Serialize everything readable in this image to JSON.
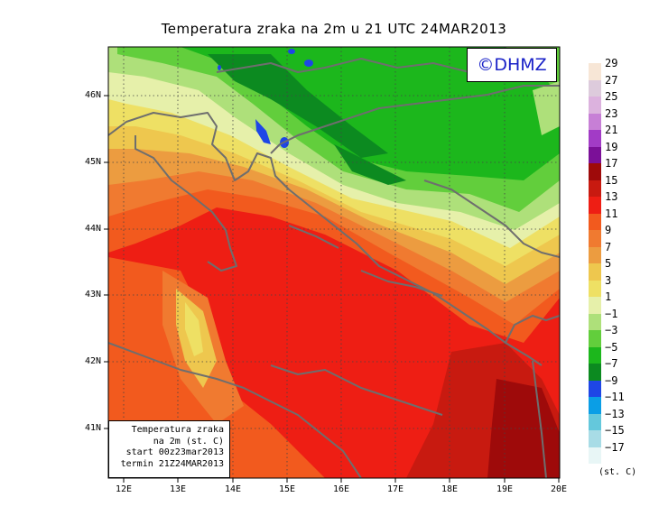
{
  "title": "Temperatura zraka na 2m u 21 UTC 24MAR2013",
  "logo_text": "©DHMZ",
  "info_box": {
    "line1": "Temperatura zraka",
    "line2": "na 2m (st. C)",
    "line3": "start 00z23mar2013",
    "line4": "termin 21Z24MAR2013"
  },
  "lat_labels": [
    "46N",
    "45N",
    "44N",
    "43N",
    "42N",
    "41N"
  ],
  "lon_labels": [
    "12E",
    "13E",
    "14E",
    "15E",
    "16E",
    "17E",
    "18E",
    "19E",
    "20E"
  ],
  "legend": {
    "unit": "(st. C)",
    "labels": [
      "29",
      "27",
      "25",
      "23",
      "21",
      "19",
      "17",
      "15",
      "13",
      "11",
      "9",
      "7",
      "5",
      "3",
      "1",
      "−1",
      "−3",
      "−5",
      "−7",
      "−9",
      "−11",
      "−13",
      "−15",
      "−17"
    ],
    "colors": [
      "#f7e6d6",
      "#ddcbdc",
      "#dcb2de",
      "#c77fd6",
      "#a23bc6",
      "#7b1098",
      "#9e0a0a",
      "#c81a10",
      "#ee1e14",
      "#f25a1e",
      "#f07a30",
      "#ec9c40",
      "#eec74e",
      "#eee064",
      "#e6f0aa",
      "#aee07a",
      "#62ce3c",
      "#1cb71c",
      "#0c8a20",
      "#1e46e6",
      "#0a9ee6",
      "#64c8dc",
      "#a8dce6",
      "#e8f6f6"
    ]
  },
  "colors": {
    "land_outline": "#6e6e6e",
    "grid": "#444444"
  }
}
